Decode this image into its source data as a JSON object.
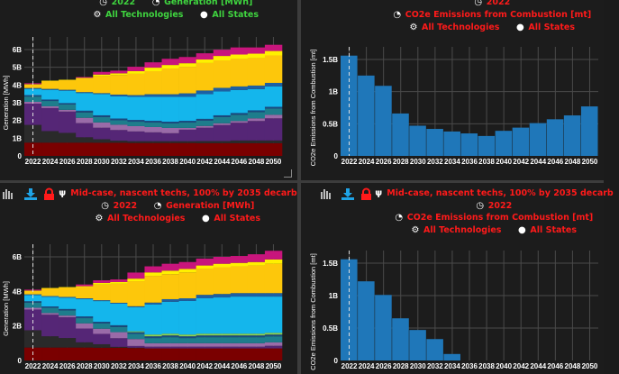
{
  "panels": {
    "top_left": {
      "year": "2022",
      "metric": "Generation [MWh]",
      "technologies": "All Technologies",
      "states": "All States",
      "text_color": "#3fd43f"
    },
    "top_right": {
      "year": "2022",
      "metric": "CO2e Emissions from Combustion [mt]",
      "technologies": "All Technologies",
      "states": "All States",
      "text_color": "#ff1a1a"
    },
    "bottom_left": {
      "scenario": "Mid-case, nascent techs, 100% by 2035 decarb",
      "year": "2022",
      "metric": "Generation [MWh]",
      "technologies": "All Technologies",
      "states": "All States",
      "text_color": "#ff1a1a",
      "icons": [
        "bar-chart-icon",
        "download-icon",
        "lock-icon",
        "scenario-fork-icon"
      ]
    },
    "bottom_right": {
      "scenario": "Mid-case, nascent techs, 100% by 2035 decarb",
      "year": "2022",
      "metric": "CO2e Emissions from Combustion [mt]",
      "technologies": "All Technologies",
      "states": "All States",
      "text_color": "#ff1a1a",
      "icons": [
        "bar-chart-icon",
        "download-icon",
        "lock-icon",
        "scenario-fork-icon"
      ]
    }
  },
  "colors": {
    "download": "#1fa3e6",
    "lock": "#ff1a1a",
    "bar": "#1f77b9",
    "background": "#1c1c1c"
  },
  "chart_data": [
    {
      "type": "bar",
      "stacked": true,
      "panel": "top_left",
      "categories": [
        "2022",
        "2024",
        "2026",
        "2028",
        "2030",
        "2032",
        "2034",
        "2036",
        "2038",
        "2040",
        "2042",
        "2044",
        "2046",
        "2048",
        "2050"
      ],
      "ylabel": "Generation [MWh]",
      "ylim": [
        0,
        6.5
      ],
      "yticks": [
        0,
        1,
        2,
        3,
        4,
        5,
        6
      ],
      "ytick_labels": [
        "0",
        "1B",
        "2B",
        "3B",
        "4B",
        "5B",
        "6B"
      ],
      "grid": true,
      "marker_year": "2022",
      "series": [
        {
          "color": "#7a0000",
          "values": [
            0.75,
            0.75,
            0.75,
            0.75,
            0.74,
            0.74,
            0.73,
            0.73,
            0.73,
            0.73,
            0.72,
            0.72,
            0.72,
            0.72,
            0.72
          ]
        },
        {
          "color": "#2a2a2a",
          "values": [
            1.0,
            0.65,
            0.55,
            0.3,
            0.2,
            0.12,
            0.1,
            0.1,
            0.1,
            0.1,
            0.12,
            0.12,
            0.15,
            0.15,
            0.15
          ]
        },
        {
          "color": "#552676",
          "values": [
            1.2,
            1.3,
            1.2,
            0.8,
            0.65,
            0.6,
            0.55,
            0.5,
            0.45,
            0.65,
            0.75,
            0.9,
            1.0,
            1.1,
            1.25
          ]
        },
        {
          "color": "#9a6ba8",
          "values": [
            0.1,
            0.1,
            0.1,
            0.3,
            0.3,
            0.3,
            0.3,
            0.3,
            0.3,
            0.1,
            0.1,
            0.1,
            0.1,
            0.15,
            0.2
          ]
        },
        {
          "color": "#1e7d8c",
          "values": [
            0.3,
            0.3,
            0.3,
            0.3,
            0.3,
            0.25,
            0.25,
            0.25,
            0.25,
            0.3,
            0.3,
            0.35,
            0.35,
            0.35,
            0.35
          ]
        },
        {
          "color": "#1a4a80",
          "values": [
            0.08,
            0.08,
            0.08,
            0.1,
            0.1,
            0.1,
            0.1,
            0.1,
            0.1,
            0.1,
            0.1,
            0.1,
            0.1,
            0.1,
            0.1
          ]
        },
        {
          "color": "#14b6ec",
          "values": [
            0.35,
            0.55,
            0.7,
            1.0,
            1.2,
            1.25,
            1.3,
            1.35,
            1.4,
            1.35,
            1.4,
            1.35,
            1.3,
            1.2,
            1.15
          ]
        },
        {
          "color": "#1d60a3",
          "values": [
            0.05,
            0.05,
            0.05,
            0.05,
            0.05,
            0.1,
            0.1,
            0.15,
            0.15,
            0.2,
            0.2,
            0.2,
            0.2,
            0.2,
            0.2
          ]
        },
        {
          "color": "#fdc70b",
          "values": [
            0.2,
            0.45,
            0.55,
            0.75,
            0.95,
            1.1,
            1.2,
            1.3,
            1.45,
            1.5,
            1.55,
            1.55,
            1.55,
            1.55,
            1.55
          ]
        },
        {
          "color": "#fff000",
          "values": [
            0.02,
            0.02,
            0.02,
            0.05,
            0.1,
            0.1,
            0.15,
            0.2,
            0.2,
            0.2,
            0.2,
            0.25,
            0.25,
            0.25,
            0.25
          ]
        },
        {
          "color": "#c8157c",
          "values": [
            0.05,
            0.0,
            0.0,
            0.05,
            0.15,
            0.15,
            0.25,
            0.3,
            0.35,
            0.35,
            0.35,
            0.35,
            0.4,
            0.35,
            0.35
          ]
        }
      ]
    },
    {
      "type": "bar",
      "panel": "top_right",
      "categories": [
        "2022",
        "2024",
        "2026",
        "2028",
        "2030",
        "2032",
        "2034",
        "2036",
        "2038",
        "2040",
        "2042",
        "2044",
        "2046",
        "2048",
        "2050"
      ],
      "ylabel": "CO2e Emissions from Combustion [mt]",
      "ylim": [
        0,
        1.65
      ],
      "yticks": [
        0,
        0.5,
        1,
        1.5
      ],
      "ytick_labels": [
        "0",
        "0.5B",
        "1B",
        "1.5B"
      ],
      "grid": true,
      "marker_year": "2022",
      "values": [
        1.56,
        1.25,
        1.09,
        0.66,
        0.47,
        0.42,
        0.38,
        0.35,
        0.31,
        0.39,
        0.44,
        0.51,
        0.57,
        0.63,
        0.77
      ]
    },
    {
      "type": "bar",
      "stacked": true,
      "panel": "bottom_left",
      "categories": [
        "2022",
        "2024",
        "2026",
        "2028",
        "2030",
        "2032",
        "2034",
        "2036",
        "2038",
        "2040",
        "2042",
        "2044",
        "2046",
        "2048",
        "2050"
      ],
      "ylabel": "Generation [MWh]",
      "ylim": [
        0,
        6.8
      ],
      "yticks": [
        0,
        2,
        4,
        6
      ],
      "ytick_labels": [
        "0",
        "2B",
        "4B",
        "6B"
      ],
      "grid": true,
      "marker_year": "2022",
      "series": [
        {
          "color": "#7a0000",
          "values": [
            0.75,
            0.75,
            0.75,
            0.75,
            0.74,
            0.74,
            0.72,
            0.7,
            0.7,
            0.7,
            0.7,
            0.7,
            0.7,
            0.7,
            0.7
          ]
        },
        {
          "color": "#2a2a2a",
          "values": [
            1.0,
            0.65,
            0.55,
            0.3,
            0.2,
            0.05,
            0.02,
            0,
            0,
            0,
            0,
            0,
            0,
            0,
            0
          ]
        },
        {
          "color": "#552676",
          "values": [
            1.2,
            1.25,
            1.2,
            0.8,
            0.6,
            0.5,
            0.1,
            0.1,
            0.1,
            0.1,
            0.1,
            0.1,
            0.1,
            0.1,
            0.15
          ]
        },
        {
          "color": "#9a6ba8",
          "values": [
            0.1,
            0.1,
            0.1,
            0.3,
            0.3,
            0.35,
            0.4,
            0.2,
            0.2,
            0.2,
            0.2,
            0.2,
            0.2,
            0.2,
            0.2
          ]
        },
        {
          "color": "#1e7d8c",
          "values": [
            0.3,
            0.3,
            0.3,
            0.3,
            0.3,
            0.3,
            0.3,
            0.3,
            0.35,
            0.3,
            0.35,
            0.35,
            0.35,
            0.35,
            0.35
          ]
        },
        {
          "color": "#1a4a80",
          "values": [
            0.08,
            0.08,
            0.08,
            0.1,
            0.1,
            0.1,
            0.1,
            0.1,
            0.1,
            0.1,
            0.1,
            0.1,
            0.1,
            0.1,
            0.1
          ]
        },
        {
          "color": "#8fd14f",
          "values": [
            0,
            0,
            0,
            0,
            0,
            0,
            0.05,
            0.1,
            0.1,
            0.1,
            0.1,
            0.1,
            0.1,
            0.1,
            0.1
          ]
        },
        {
          "color": "#14b6ec",
          "values": [
            0.35,
            0.55,
            0.65,
            1.0,
            1.2,
            1.25,
            1.4,
            1.75,
            1.85,
            1.95,
            2.05,
            2.1,
            2.15,
            2.15,
            2.1
          ]
        },
        {
          "color": "#1d60a3",
          "values": [
            0.05,
            0.05,
            0.05,
            0.05,
            0.05,
            0.05,
            0.05,
            0.1,
            0.15,
            0.15,
            0.2,
            0.2,
            0.2,
            0.2,
            0.2
          ]
        },
        {
          "color": "#fdc70b",
          "values": [
            0.2,
            0.45,
            0.55,
            0.65,
            0.9,
            1.1,
            1.45,
            1.55,
            1.45,
            1.5,
            1.5,
            1.55,
            1.55,
            1.6,
            1.7
          ]
        },
        {
          "color": "#fff000",
          "values": [
            0.02,
            0.02,
            0.02,
            0.05,
            0.1,
            0.1,
            0.15,
            0.2,
            0.2,
            0.2,
            0.2,
            0.2,
            0.2,
            0.2,
            0.25
          ]
        },
        {
          "color": "#c8157c",
          "values": [
            0.05,
            0,
            0,
            0.1,
            0.15,
            0.15,
            0.35,
            0.35,
            0.4,
            0.4,
            0.4,
            0.4,
            0.4,
            0.45,
            0.5
          ]
        }
      ]
    },
    {
      "type": "bar",
      "panel": "bottom_right",
      "categories": [
        "2022",
        "2024",
        "2026",
        "2028",
        "2030",
        "2032",
        "2034",
        "2036",
        "2038",
        "2040",
        "2042",
        "2044",
        "2046",
        "2048",
        "2050"
      ],
      "ylabel": "CO2e Emissions from Combustion [mt]",
      "ylim": [
        0,
        1.65
      ],
      "yticks": [
        0,
        0.5,
        1,
        1.5
      ],
      "ytick_labels": [
        "0",
        "0.5B",
        "1B",
        "1.5B"
      ],
      "grid": true,
      "marker_year": "2022",
      "values": [
        1.56,
        1.22,
        1.01,
        0.65,
        0.47,
        0.33,
        0.1,
        0,
        0,
        0,
        0,
        0,
        0,
        0,
        0
      ]
    }
  ]
}
